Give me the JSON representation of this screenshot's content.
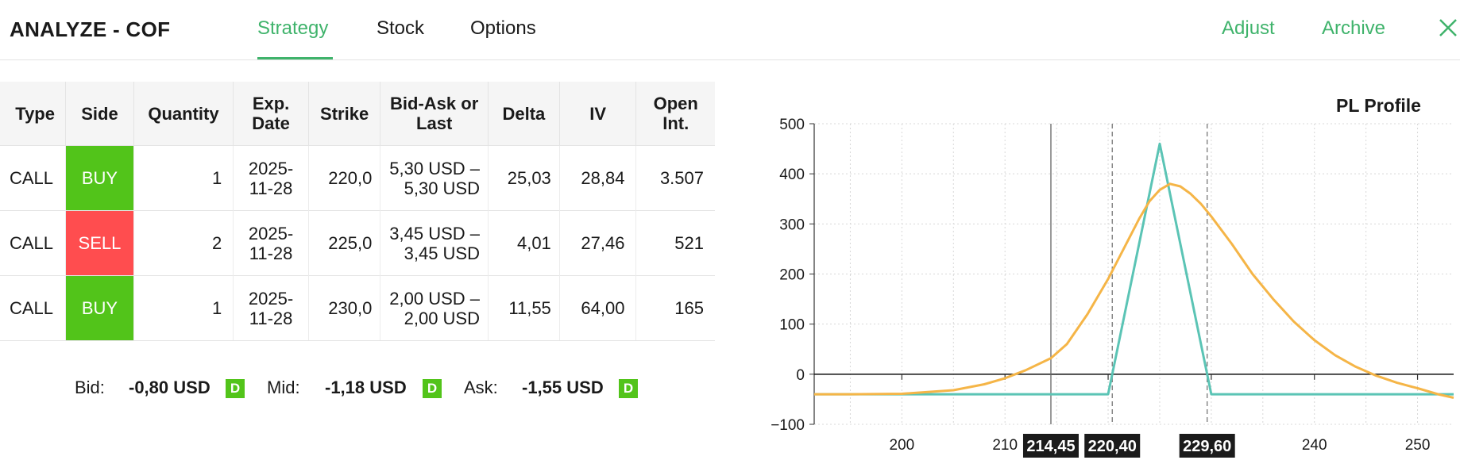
{
  "header": {
    "title": "ANALYZE - COF",
    "tabs": [
      {
        "label": "Strategy",
        "active": true
      },
      {
        "label": "Stock",
        "active": false
      },
      {
        "label": "Options",
        "active": false
      }
    ],
    "adjust_label": "Adjust",
    "archive_label": "Archive",
    "close_icon": "close-icon"
  },
  "table": {
    "headers": [
      "Type",
      "Side",
      "Quantity",
      "Exp.\nDate",
      "Strike",
      "Bid-Ask or\nLast",
      "Delta",
      "IV",
      "Open\nInt."
    ],
    "rows": [
      {
        "type": "CALL",
        "side": "BUY",
        "quantity": "1",
        "exp_line1": "2025-",
        "exp_line2": "11-28",
        "strike": "220,0",
        "bidask_line1": "5,30 USD –",
        "bidask_line2": "5,30 USD",
        "delta": "25,03",
        "iv": "28,84",
        "open_int": "3.507"
      },
      {
        "type": "CALL",
        "side": "SELL",
        "quantity": "2",
        "exp_line1": "2025-",
        "exp_line2": "11-28",
        "strike": "225,0",
        "bidask_line1": "3,45 USD –",
        "bidask_line2": "3,45 USD",
        "delta": "4,01",
        "iv": "27,46",
        "open_int": "521"
      },
      {
        "type": "CALL",
        "side": "BUY",
        "quantity": "1",
        "exp_line1": "2025-",
        "exp_line2": "11-28",
        "strike": "230,0",
        "bidask_line1": "2,00 USD –",
        "bidask_line2": "2,00 USD",
        "delta": "11,55",
        "iv": "64,00",
        "open_int": "165"
      }
    ]
  },
  "summary": {
    "bid_label": "Bid:",
    "bid_value": "-0,80 USD",
    "mid_label": "Mid:",
    "mid_value": "-1,18 USD",
    "ask_label": "Ask:",
    "ask_value": "-1,55 USD",
    "badge": "D"
  },
  "colors": {
    "accent": "#3fb36b",
    "buy": "#52c41a",
    "sell": "#ff4d4f",
    "expiry_line": "#5bc4b5",
    "theo_line": "#f5b547"
  },
  "chart_data": {
    "type": "line",
    "title": "PL Profile",
    "xlim": [
      191.5,
      253.5
    ],
    "ylim": [
      -100,
      500
    ],
    "xticks": [
      200,
      210,
      220,
      230,
      240,
      250
    ],
    "xtick_labels": [
      "200",
      "210",
      "",
      "",
      "240",
      "250"
    ],
    "yticks": [
      -100,
      0,
      100,
      200,
      300,
      400,
      500
    ],
    "grid": true,
    "series": [
      {
        "kind": "at-expiry",
        "x": [
          191.5,
          220.0,
          225.0,
          230.0,
          253.5
        ],
        "y": [
          -40,
          -40,
          460,
          -40,
          -40
        ]
      },
      {
        "kind": "theoretical",
        "x": [
          191.5,
          195,
          200,
          205,
          208,
          210,
          212,
          214.45,
          216,
          218,
          220,
          221,
          222,
          223,
          224,
          225,
          226,
          227,
          228,
          229,
          230,
          232,
          234,
          236,
          238,
          240,
          242,
          244,
          246,
          248,
          250,
          252,
          253.5
        ],
        "y": [
          -40,
          -40,
          -39,
          -32,
          -20,
          -8,
          8,
          32,
          60,
          120,
          190,
          230,
          270,
          310,
          345,
          368,
          380,
          375,
          360,
          340,
          315,
          260,
          200,
          150,
          105,
          68,
          38,
          15,
          -3,
          -17,
          -28,
          -40,
          -47
        ]
      }
    ],
    "markers": [
      {
        "x": 214.45,
        "label": "214,45",
        "style": "current-price"
      },
      {
        "x": 220.4,
        "label": "220,40",
        "style": "breakeven"
      },
      {
        "x": 229.6,
        "label": "229,60",
        "style": "breakeven"
      }
    ]
  }
}
